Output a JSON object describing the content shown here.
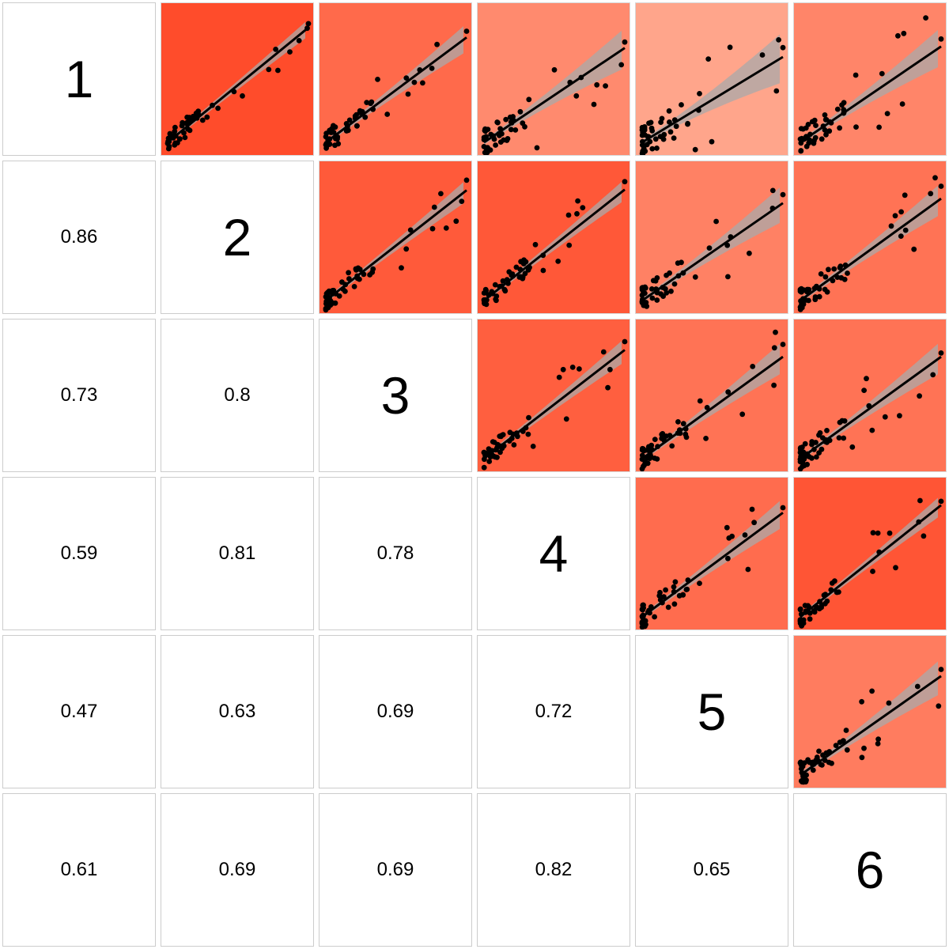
{
  "chart_data": {
    "type": "scatter-matrix",
    "variables": [
      "1",
      "2",
      "3",
      "4",
      "5",
      "6"
    ],
    "correlations": [
      [
        1,
        0.86,
        0.73,
        0.59,
        0.47,
        0.61
      ],
      [
        0.86,
        1,
        0.8,
        0.81,
        0.63,
        0.69
      ],
      [
        0.73,
        0.8,
        1,
        0.78,
        0.69,
        0.69
      ],
      [
        0.59,
        0.81,
        0.78,
        1,
        0.72,
        0.82
      ],
      [
        0.47,
        0.63,
        0.69,
        0.72,
        1,
        0.65
      ],
      [
        0.61,
        0.69,
        0.69,
        0.82,
        0.65,
        1
      ]
    ],
    "lower_labels": [
      {
        "row": 2,
        "col": 1,
        "text": "0.86"
      },
      {
        "row": 3,
        "col": 1,
        "text": "0.73"
      },
      {
        "row": 3,
        "col": 2,
        "text": "0.8"
      },
      {
        "row": 4,
        "col": 1,
        "text": "0.59"
      },
      {
        "row": 4,
        "col": 2,
        "text": "0.81"
      },
      {
        "row": 4,
        "col": 3,
        "text": "0.78"
      },
      {
        "row": 5,
        "col": 1,
        "text": "0.47"
      },
      {
        "row": 5,
        "col": 2,
        "text": "0.63"
      },
      {
        "row": 5,
        "col": 3,
        "text": "0.69"
      },
      {
        "row": 5,
        "col": 4,
        "text": "0.72"
      },
      {
        "row": 6,
        "col": 1,
        "text": "0.61"
      },
      {
        "row": 6,
        "col": 2,
        "text": "0.69"
      },
      {
        "row": 6,
        "col": 3,
        "text": "0.69"
      },
      {
        "row": 6,
        "col": 4,
        "text": "0.82"
      },
      {
        "row": 6,
        "col": 5,
        "text": "0.65"
      }
    ],
    "upper_panels": "scatter with linear fit and confidence band",
    "colors": {
      "high_correlation": "#ff4a29",
      "low_correlation": "#ffaa90",
      "points": "#000000",
      "fit_line": "#000000",
      "confidence_band": "#aaaaaa",
      "cell_border": "#cccccc"
    },
    "grid": false,
    "legend": "none"
  }
}
